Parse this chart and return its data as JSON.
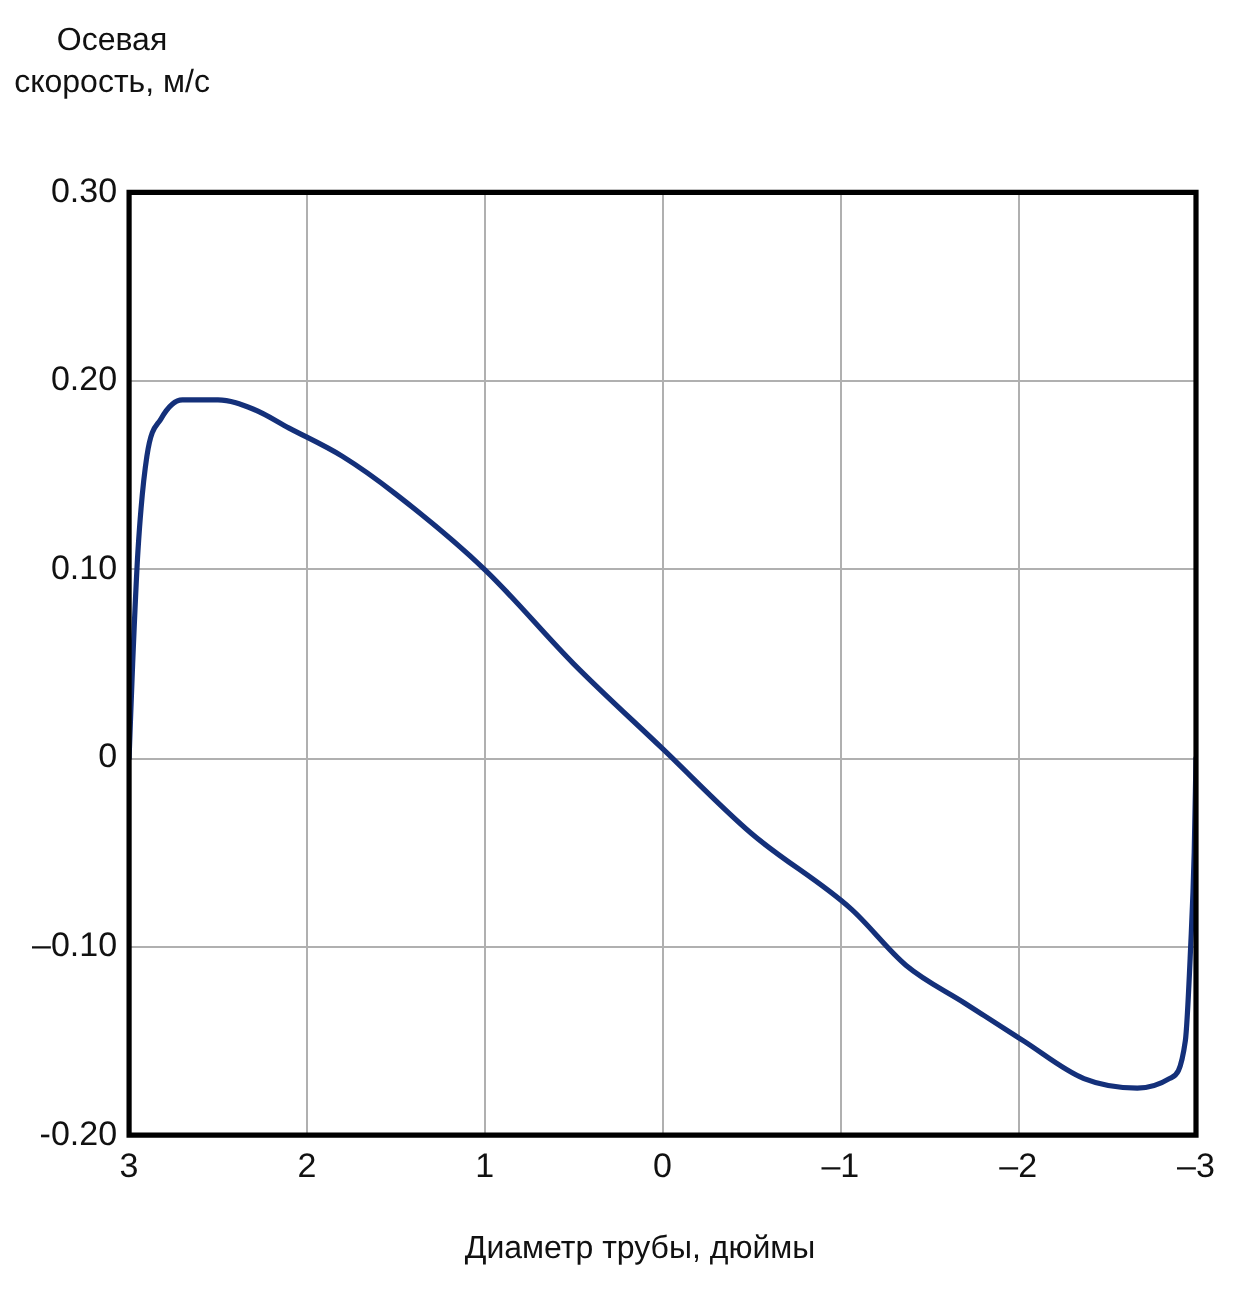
{
  "chart_data": {
    "type": "line",
    "xlabel": "Диаметр трубы, дюймы",
    "ylabel": "Осевая скорость, м/с",
    "x": [
      3,
      2.98,
      2.95,
      2.9,
      2.82,
      2.7,
      2.5,
      2.3,
      2.1,
      1.8,
      1.5,
      1.0,
      0.5,
      0,
      -0.5,
      -1.06,
      -1.37,
      -1.7,
      -2.03,
      -2.37,
      -2.67,
      -2.85,
      -2.94,
      -2.97,
      -2.99,
      -3
    ],
    "series": [
      {
        "color": "#14307a",
        "values": [
          0,
          0.05,
          0.11,
          0.16,
          0.18,
          0.19,
          0.19,
          0.185,
          0.175,
          0.16,
          0.14,
          0.1,
          0.05,
          0.005,
          -0.04,
          -0.08,
          -0.11,
          -0.13,
          -0.15,
          -0.17,
          -0.175,
          -0.17,
          -0.15,
          -0.1,
          -0.05,
          0
        ]
      }
    ],
    "xlim": [
      3,
      -3
    ],
    "xticks": [
      3,
      2,
      1,
      0,
      {
        "value": -1,
        "label": "–1"
      },
      {
        "value": -2,
        "label": "–2"
      },
      {
        "value": -3,
        "label": "–3"
      }
    ],
    "ylim": [
      -0.2,
      0.3
    ],
    "yticks": [
      {
        "value": -0.2,
        "label": "-0.20"
      },
      {
        "value": -0.1,
        "label": "–0.10"
      },
      0,
      {
        "value": 0.1,
        "label": "0.10"
      },
      {
        "value": 0.2,
        "label": "0.20"
      },
      {
        "value": 0.3,
        "label": "0.30"
      }
    ],
    "grid": true,
    "legend": false,
    "marker": "none",
    "line_style": "solid"
  }
}
